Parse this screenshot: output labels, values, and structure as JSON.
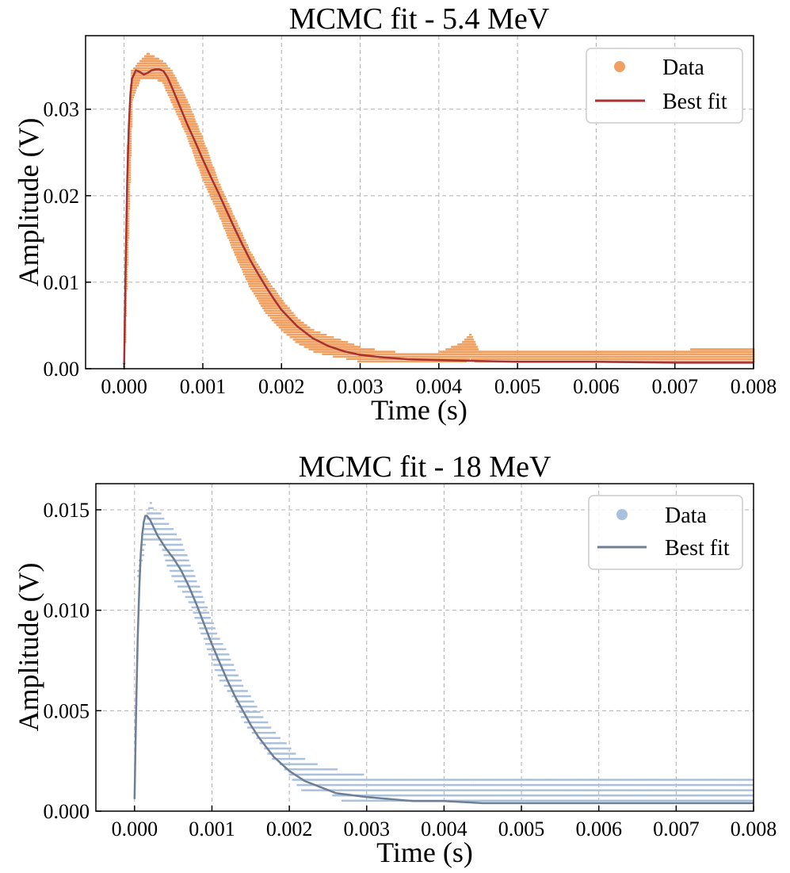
{
  "chart_data": [
    {
      "type": "scatter",
      "title": "MCMC fit - 5.4 MeV",
      "xlabel": "Time (s)",
      "ylabel": "Amplitude (V)",
      "xlim": [
        -0.00049,
        0.008
      ],
      "ylim": [
        0,
        0.0385
      ],
      "xticks": [
        0,
        0.001,
        0.002,
        0.003,
        0.004,
        0.005,
        0.006,
        0.007,
        0.008
      ],
      "xtick_labels": [
        "0.000",
        "0.001",
        "0.002",
        "0.003",
        "0.004",
        "0.005",
        "0.006",
        "0.007",
        "0.008"
      ],
      "yticks": [
        0,
        0.01,
        0.02,
        0.03
      ],
      "ytick_labels": [
        "0.00",
        "0.01",
        "0.02",
        "0.03"
      ],
      "grid": true,
      "legend_position": "top-right",
      "series": [
        {
          "name": "Data",
          "kind": "scatter",
          "color": "#f0a060",
          "x": [
            0.0,
            5e-05,
            0.0001,
            0.0002,
            0.0003,
            0.0004,
            0.0005,
            0.0006,
            0.0008,
            0.001,
            0.0012,
            0.0014,
            0.0016,
            0.0018,
            0.002,
            0.0022,
            0.0024,
            0.0026,
            0.0028,
            0.003,
            0.0032,
            0.0035,
            0.0038,
            0.004,
            0.0043,
            0.0044,
            0.0045,
            0.005,
            0.0055,
            0.006,
            0.0065,
            0.007,
            0.0075,
            0.008
          ],
          "y_low": [
            0.0,
            0.015,
            0.031,
            0.0335,
            0.0335,
            0.0335,
            0.033,
            0.031,
            0.027,
            0.022,
            0.018,
            0.0135,
            0.0095,
            0.0065,
            0.0045,
            0.003,
            0.002,
            0.0015,
            0.0012,
            0.0008,
            0.0008,
            0.0006,
            0.0006,
            0.0006,
            0.0006,
            0.0012,
            0.0006,
            0.0006,
            0.0006,
            0.0006,
            0.0006,
            0.0006,
            0.0006,
            0.0006
          ],
          "y_high": [
            0.0008,
            0.026,
            0.0345,
            0.0355,
            0.0365,
            0.036,
            0.0355,
            0.0345,
            0.031,
            0.0265,
            0.0215,
            0.0175,
            0.0135,
            0.0105,
            0.008,
            0.0058,
            0.0045,
            0.0038,
            0.0032,
            0.0025,
            0.0022,
            0.0019,
            0.0019,
            0.0019,
            0.003,
            0.004,
            0.0022,
            0.0022,
            0.0021,
            0.0021,
            0.0021,
            0.0022,
            0.0023,
            0.0023
          ]
        },
        {
          "name": "Best fit",
          "kind": "line",
          "color": "#a83232",
          "x": [
            0.0,
            2e-05,
            4e-05,
            6e-05,
            8e-05,
            0.0001,
            0.00015,
            0.0002,
            0.00025,
            0.0003,
            0.00035,
            0.0004,
            0.00045,
            0.0005,
            0.00055,
            0.0006,
            0.0007,
            0.0008,
            0.0009,
            0.001,
            0.0011,
            0.0012,
            0.0013,
            0.0014,
            0.0015,
            0.0016,
            0.0017,
            0.0018,
            0.0019,
            0.002,
            0.0022,
            0.0024,
            0.0026,
            0.0028,
            0.003,
            0.0033,
            0.0036,
            0.004,
            0.0045,
            0.005,
            0.006,
            0.007,
            0.008
          ],
          "y": [
            0.0005,
            0.012,
            0.022,
            0.028,
            0.0318,
            0.0335,
            0.0345,
            0.0343,
            0.034,
            0.0342,
            0.0345,
            0.0346,
            0.0346,
            0.0344,
            0.0337,
            0.0327,
            0.0305,
            0.0283,
            0.0263,
            0.0242,
            0.0222,
            0.0203,
            0.0183,
            0.0163,
            0.0144,
            0.0126,
            0.011,
            0.0095,
            0.0081,
            0.0068,
            0.0049,
            0.0035,
            0.0026,
            0.002,
            0.0016,
            0.0013,
            0.0011,
            0.001,
            0.0009,
            0.0008,
            0.0008,
            0.0007,
            0.0007
          ]
        }
      ]
    },
    {
      "type": "scatter",
      "title": "MCMC fit - 18 MeV",
      "xlabel": "Time (s)",
      "ylabel": "Amplitude (V)",
      "xlim": [
        -0.0005,
        0.008
      ],
      "ylim": [
        0,
        0.0163
      ],
      "xticks": [
        0,
        0.001,
        0.002,
        0.003,
        0.004,
        0.005,
        0.006,
        0.007,
        0.008
      ],
      "xtick_labels": [
        "0.000",
        "0.001",
        "0.002",
        "0.003",
        "0.004",
        "0.005",
        "0.006",
        "0.007",
        "0.008"
      ],
      "yticks": [
        0,
        0.005,
        0.01,
        0.015
      ],
      "ytick_labels": [
        "0.000",
        "0.005",
        "0.010",
        "0.015"
      ],
      "grid": true,
      "legend_position": "top-right",
      "series": [
        {
          "name": "Data",
          "kind": "scatter",
          "color": "#aac0dc",
          "x": [
            5e-05,
            0.0001,
            0.00015,
            0.0002,
            0.00025,
            0.0003,
            0.0004,
            0.0005,
            0.0006,
            0.0007,
            0.0008,
            0.0009,
            0.001,
            0.0011,
            0.0012,
            0.0013,
            0.0014,
            0.0015,
            0.0016,
            0.0017,
            0.0018,
            0.0019,
            0.002,
            0.0021,
            0.0022,
            0.0023,
            0.0024,
            0.0025,
            0.0027,
            0.003,
            0.0035,
            0.004,
            0.005,
            0.006,
            0.007,
            0.0075,
            0.008
          ],
          "y_low": [
            0.0115,
            0.0125,
            0.0135,
            0.0135,
            0.0135,
            0.0135,
            0.0125,
            0.0115,
            0.011,
            0.0105,
            0.0095,
            0.0085,
            0.0075,
            0.0065,
            0.006,
            0.0055,
            0.0045,
            0.004,
            0.0035,
            0.003,
            0.0025,
            0.0023,
            0.0018,
            0.0013,
            0.0009,
            0.0009,
            0.0009,
            0.0009,
            0.0005,
            0.0005,
            0.0005,
            0.0005,
            0.0005,
            0.0005,
            0.0005,
            0.0005,
            0.0005
          ],
          "y_high": [
            0.012,
            0.0135,
            0.0145,
            0.0155,
            0.015,
            0.015,
            0.0145,
            0.014,
            0.0135,
            0.0125,
            0.0115,
            0.0105,
            0.0095,
            0.0085,
            0.008,
            0.007,
            0.0063,
            0.0057,
            0.005,
            0.0045,
            0.004,
            0.0036,
            0.0032,
            0.0028,
            0.0026,
            0.0024,
            0.0023,
            0.0022,
            0.002,
            0.0018,
            0.0017,
            0.0017,
            0.0017,
            0.0017,
            0.0017,
            0.0018,
            0.0018
          ]
        },
        {
          "name": "Best fit",
          "kind": "line",
          "color": "#6e7f95",
          "x": [
            0.0,
            2e-05,
            4e-05,
            6e-05,
            8e-05,
            0.0001,
            0.00012,
            0.00014,
            0.00016,
            0.00018,
            0.0002,
            0.00025,
            0.0003,
            0.0004,
            0.0005,
            0.0006,
            0.0007,
            0.0008,
            0.0009,
            0.001,
            0.0011,
            0.0012,
            0.0013,
            0.0014,
            0.0015,
            0.0016,
            0.0017,
            0.0018,
            0.002,
            0.0022,
            0.0024,
            0.0026,
            0.0028,
            0.003,
            0.0033,
            0.0036,
            0.004,
            0.0045,
            0.005,
            0.006,
            0.007,
            0.008
          ],
          "y": [
            0.0006,
            0.005,
            0.0085,
            0.011,
            0.0128,
            0.0138,
            0.0144,
            0.0147,
            0.0147,
            0.0146,
            0.0145,
            0.0141,
            0.0137,
            0.0131,
            0.0126,
            0.012,
            0.0112,
            0.0103,
            0.0093,
            0.0083,
            0.0074,
            0.0065,
            0.0057,
            0.005,
            0.0043,
            0.0037,
            0.0032,
            0.0027,
            0.002,
            0.0015,
            0.0012,
            0.0009,
            0.0008,
            0.0007,
            0.0006,
            0.0005,
            0.0005,
            0.0004,
            0.0004,
            0.0004,
            0.0004,
            0.0004
          ]
        }
      ]
    }
  ]
}
